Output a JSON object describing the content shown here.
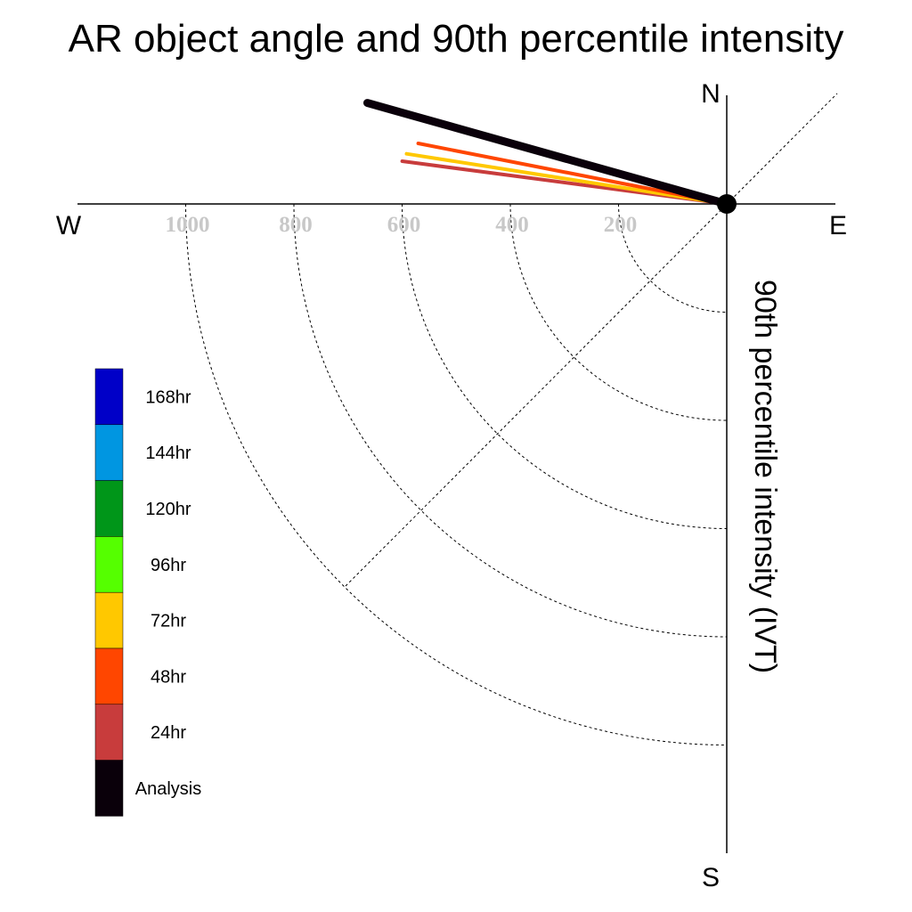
{
  "chart_data": {
    "type": "polar-vector",
    "title": "AR object angle and 90th percentile intensity",
    "radial_label": "90th percentile intensity (IVT)",
    "compass": {
      "north": "N",
      "south": "S",
      "east": "E",
      "west": "W"
    },
    "radial_ticks": [
      200,
      400,
      600,
      800,
      1000
    ],
    "radial_tick_labels": [
      "200",
      "400",
      "600",
      "800",
      "1000"
    ],
    "rmax": 1200,
    "grid": true,
    "legend": {
      "placement": "left",
      "entries": [
        {
          "label": "168hr",
          "color": "#0000c8"
        },
        {
          "label": "144hr",
          "color": "#0096e1"
        },
        {
          "label": "120hr",
          "color": "#009619"
        },
        {
          "label": "96hr",
          "color": "#55ff00"
        },
        {
          "label": "72hr",
          "color": "#ffc800"
        },
        {
          "label": "48hr",
          "color": "#ff4600"
        },
        {
          "label": "24hr",
          "color": "#c83c3c"
        },
        {
          "label": "Analysis",
          "color": "#0a000a"
        }
      ]
    },
    "series": [
      {
        "name": "24hr",
        "color": "#c83c3c",
        "angle_deg_from_east": 172.5,
        "intensity": 605
      },
      {
        "name": "72hr",
        "color": "#ffc800",
        "angle_deg_from_east": 171.1,
        "intensity": 599
      },
      {
        "name": "48hr",
        "color": "#ff4600",
        "angle_deg_from_east": 168.9,
        "intensity": 581
      },
      {
        "name": "Analysis",
        "color": "#0a000a",
        "angle_deg_from_east": 164.3,
        "intensity": 690
      }
    ]
  }
}
